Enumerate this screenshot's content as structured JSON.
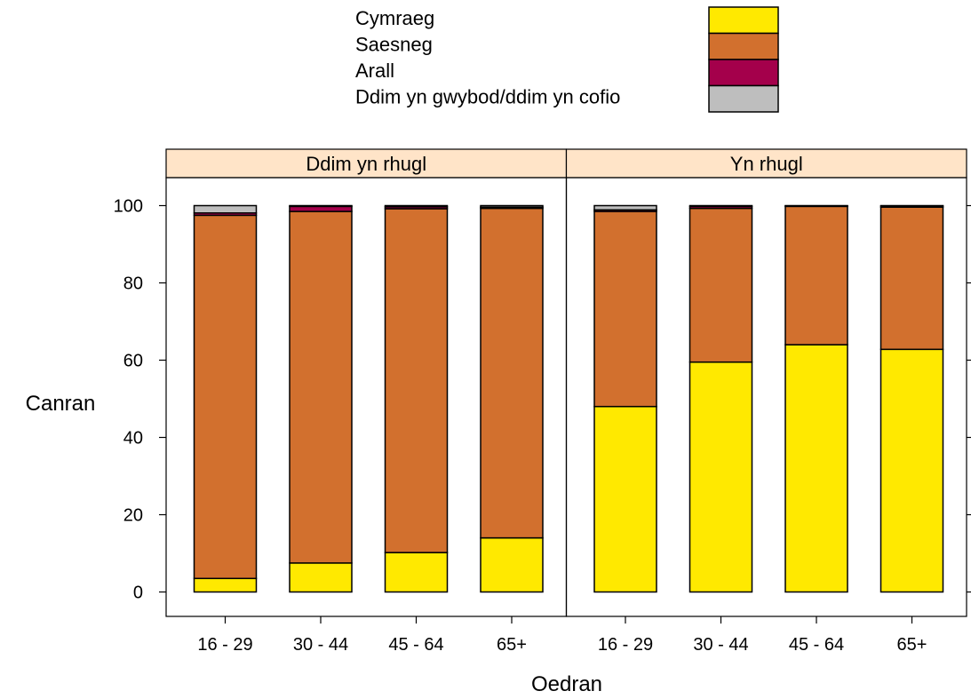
{
  "chart_data": {
    "type": "bar",
    "stacked": true,
    "categories": [
      "16 - 29",
      "30 - 44",
      "45 - 64",
      "65+"
    ],
    "xlabel": "Oedran",
    "ylabel": "Canran",
    "ylim": [
      0,
      100
    ],
    "yticks": [
      0,
      20,
      40,
      60,
      80,
      100
    ],
    "legend": {
      "placement": "top",
      "items": [
        {
          "name": "Cymraeg",
          "color": "#FFE900"
        },
        {
          "name": "Saesneg",
          "color": "#D2702E"
        },
        {
          "name": "Arall",
          "color": "#A4004B"
        },
        {
          "name": "Ddim yn gwybod/ddim yn cofio",
          "color": "#BEBEBE"
        }
      ]
    },
    "strip_color": "#FFE4C8",
    "panels": [
      {
        "title": "Ddim yn rhugl",
        "series": [
          {
            "name": "Cymraeg",
            "values": [
              3.5,
              7.5,
              10.2,
              14.0
            ]
          },
          {
            "name": "Saesneg",
            "values": [
              94.0,
              91.0,
              89.0,
              85.3
            ]
          },
          {
            "name": "Arall",
            "values": [
              0.6,
              1.3,
              0.5,
              0.3
            ]
          },
          {
            "name": "Ddim yn gwybod/ddim yn cofio",
            "values": [
              1.9,
              0.2,
              0.3,
              0.4
            ]
          }
        ]
      },
      {
        "title": "Yn rhugl",
        "series": [
          {
            "name": "Cymraeg",
            "values": [
              48.0,
              59.5,
              64.0,
              62.8
            ]
          },
          {
            "name": "Saesneg",
            "values": [
              50.5,
              39.8,
              35.8,
              36.8
            ]
          },
          {
            "name": "Arall",
            "values": [
              0.4,
              0.5,
              0.1,
              0.3
            ]
          },
          {
            "name": "Ddim yn gwybod/ddim yn cofio",
            "values": [
              1.1,
              0.2,
              0.1,
              0.1
            ]
          }
        ]
      }
    ]
  }
}
